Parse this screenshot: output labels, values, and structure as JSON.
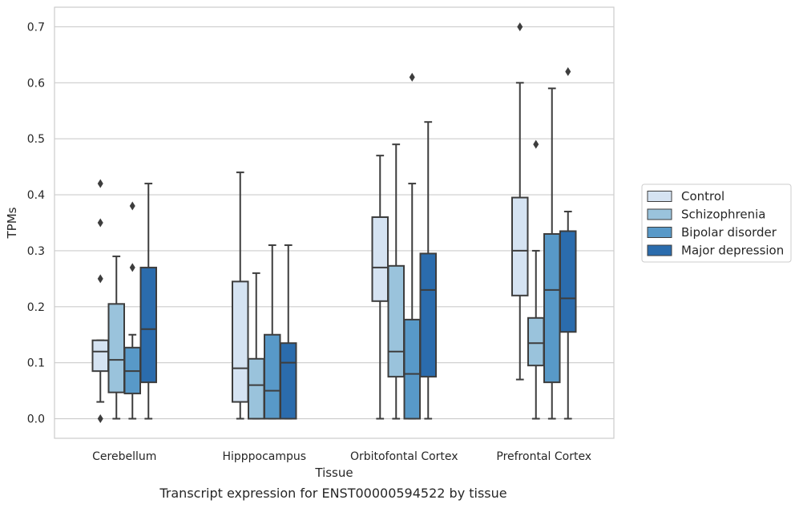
{
  "caption": "Transcript expression for ENST00000594522 by tissue",
  "chart_data": {
    "type": "box",
    "xlabel": "Tissue",
    "ylabel": "TPMs",
    "ylim": [
      -0.035,
      0.735
    ],
    "yticks": [
      0.0,
      0.1,
      0.2,
      0.3,
      0.4,
      0.5,
      0.6,
      0.7
    ],
    "ytick_labels": [
      "0.0",
      "0.1",
      "0.2",
      "0.3",
      "0.4",
      "0.5",
      "0.6",
      "0.7"
    ],
    "grid": "horizontal",
    "legend_position": "right",
    "categories": [
      "Cerebellum",
      "Hipppocampus",
      "Orbitofontal Cortex",
      "Prefrontal Cortex"
    ],
    "series": [
      {
        "name": "Control",
        "color": "#d5e3f2",
        "boxes": [
          {
            "whislo": 0.03,
            "q1": 0.085,
            "med": 0.12,
            "q3": 0.14,
            "whishi": 0.14,
            "fliers": [
              0.0,
              0.25,
              0.35,
              0.42
            ]
          },
          {
            "whislo": 0.0,
            "q1": 0.03,
            "med": 0.09,
            "q3": 0.245,
            "whishi": 0.44,
            "fliers": []
          },
          {
            "whislo": 0.0,
            "q1": 0.21,
            "med": 0.27,
            "q3": 0.36,
            "whishi": 0.47,
            "fliers": []
          },
          {
            "whislo": 0.07,
            "q1": 0.22,
            "med": 0.3,
            "q3": 0.395,
            "whishi": 0.6,
            "fliers": [
              0.7
            ]
          }
        ]
      },
      {
        "name": "Schizophrenia",
        "color": "#9ac3dc",
        "boxes": [
          {
            "whislo": 0.0,
            "q1": 0.047,
            "med": 0.105,
            "q3": 0.205,
            "whishi": 0.29,
            "fliers": []
          },
          {
            "whislo": 0.0,
            "q1": 0.0,
            "med": 0.06,
            "q3": 0.107,
            "whishi": 0.26,
            "fliers": []
          },
          {
            "whislo": 0.0,
            "q1": 0.075,
            "med": 0.12,
            "q3": 0.273,
            "whishi": 0.49,
            "fliers": []
          },
          {
            "whislo": 0.0,
            "q1": 0.095,
            "med": 0.135,
            "q3": 0.18,
            "whishi": 0.3,
            "fliers": [
              0.49
            ]
          }
        ]
      },
      {
        "name": "Bipolar disorder",
        "color": "#5899c8",
        "boxes": [
          {
            "whislo": 0.0,
            "q1": 0.045,
            "med": 0.085,
            "q3": 0.127,
            "whishi": 0.15,
            "fliers": [
              0.27,
              0.38
            ]
          },
          {
            "whislo": 0.0,
            "q1": 0.0,
            "med": 0.05,
            "q3": 0.15,
            "whishi": 0.31,
            "fliers": []
          },
          {
            "whislo": 0.0,
            "q1": 0.0,
            "med": 0.08,
            "q3": 0.177,
            "whishi": 0.42,
            "fliers": [
              0.61
            ]
          },
          {
            "whislo": 0.0,
            "q1": 0.065,
            "med": 0.23,
            "q3": 0.33,
            "whishi": 0.59,
            "fliers": []
          }
        ]
      },
      {
        "name": "Major depression",
        "color": "#2b6cad",
        "boxes": [
          {
            "whislo": 0.0,
            "q1": 0.065,
            "med": 0.16,
            "q3": 0.27,
            "whishi": 0.42,
            "fliers": []
          },
          {
            "whislo": 0.0,
            "q1": 0.0,
            "med": 0.1,
            "q3": 0.135,
            "whishi": 0.31,
            "fliers": []
          },
          {
            "whislo": 0.0,
            "q1": 0.075,
            "med": 0.23,
            "q3": 0.295,
            "whishi": 0.53,
            "fliers": []
          },
          {
            "whislo": 0.0,
            "q1": 0.155,
            "med": 0.215,
            "q3": 0.335,
            "whishi": 0.37,
            "fliers": [
              0.62
            ]
          }
        ]
      }
    ]
  }
}
